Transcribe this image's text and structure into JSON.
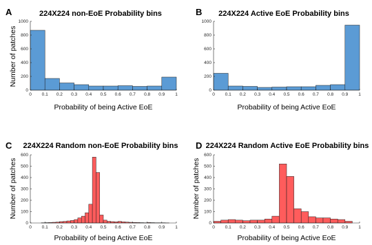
{
  "figure": {
    "panel_letters": [
      "A",
      "B",
      "C",
      "D"
    ]
  },
  "chart_data": [
    {
      "type": "bar",
      "panel": "A",
      "title": "224X224 non-EoE Probability bins",
      "xlabel": "Probability of being Active EoE",
      "ylabel": "Number of patches",
      "bin_edges": [
        0,
        0.1,
        0.2,
        0.3,
        0.4,
        0.5,
        0.6,
        0.7,
        0.8,
        0.9,
        1.0
      ],
      "values": [
        870,
        170,
        105,
        80,
        60,
        60,
        65,
        55,
        60,
        190
      ],
      "xlim": [
        0,
        1
      ],
      "ylim": [
        0,
        1000
      ],
      "xticks": [
        "0",
        "0.1",
        "0.2",
        "0.3",
        "0.4",
        "0.5",
        "0.6",
        "0.7",
        "0.8",
        "0.9",
        "1"
      ],
      "yticks": [
        "0",
        "200",
        "400",
        "600",
        "800",
        "1000"
      ],
      "color": "#5b9bd5"
    },
    {
      "type": "bar",
      "panel": "B",
      "title": "224X224 Active EoE Probability bins",
      "xlabel": "Probability of being Active EoE",
      "ylabel": "",
      "bin_edges": [
        0,
        0.1,
        0.2,
        0.3,
        0.4,
        0.5,
        0.6,
        0.7,
        0.8,
        0.9,
        1.0
      ],
      "values": [
        245,
        60,
        55,
        40,
        45,
        50,
        50,
        70,
        80,
        945
      ],
      "xlim": [
        0,
        1
      ],
      "ylim": [
        0,
        1000
      ],
      "xticks": [
        "0",
        "0.1",
        "0.2",
        "0.3",
        "0.4",
        "0.5",
        "0.6",
        "0.7",
        "0.8",
        "0.9",
        "1"
      ],
      "yticks": [
        "0",
        "200",
        "400",
        "600",
        "800",
        "1000"
      ],
      "color": "#5b9bd5"
    },
    {
      "type": "bar",
      "panel": "C",
      "title": "224X224 Random non-EoE Probability bins",
      "xlabel": "Probability of being Active EoE",
      "ylabel": "Number of patches",
      "bin_edges": [
        0.075,
        0.1,
        0.125,
        0.15,
        0.175,
        0.2,
        0.225,
        0.25,
        0.275,
        0.3,
        0.325,
        0.35,
        0.375,
        0.4,
        0.425,
        0.45,
        0.475,
        0.5,
        0.525,
        0.55,
        0.575,
        0.6,
        0.625,
        0.65,
        0.675,
        0.7,
        0.725,
        0.75,
        0.775,
        0.8,
        0.825,
        0.85,
        0.875,
        0.9,
        0.925,
        0.95
      ],
      "values": [
        2,
        3,
        4,
        6,
        8,
        12,
        14,
        18,
        22,
        30,
        45,
        60,
        90,
        165,
        580,
        445,
        70,
        25,
        15,
        12,
        10,
        14,
        10,
        8,
        6,
        5,
        4,
        3,
        2,
        4,
        3,
        2,
        2,
        2,
        1
      ],
      "xlim": [
        0,
        1
      ],
      "ylim": [
        0,
        600
      ],
      "xticks": [
        "0",
        "0.1",
        "0.2",
        "0.3",
        "0.4",
        "0.5",
        "0.6",
        "0.7",
        "0.8",
        "0.9",
        "1"
      ],
      "yticks": [
        "0",
        "100",
        "200",
        "300",
        "400",
        "500",
        "600"
      ],
      "color": "#ff5c5c"
    },
    {
      "type": "bar",
      "panel": "D",
      "title": "224X224 Random Active EoE Probability bins",
      "xlabel": "Probability of being Active EoE",
      "ylabel": "Number of patches",
      "bin_edges": [
        0,
        0.05,
        0.1,
        0.15,
        0.2,
        0.25,
        0.3,
        0.35,
        0.4,
        0.45,
        0.5,
        0.55,
        0.6,
        0.65,
        0.7,
        0.75,
        0.8,
        0.85,
        0.9,
        0.95
      ],
      "values": [
        15,
        25,
        30,
        25,
        20,
        25,
        25,
        35,
        60,
        520,
        410,
        125,
        100,
        55,
        45,
        45,
        35,
        30,
        15
      ],
      "xlim": [
        0,
        1
      ],
      "ylim": [
        0,
        600
      ],
      "xticks": [
        "0",
        "0.1",
        "0.2",
        "0.3",
        "0.4",
        "0.5",
        "0.6",
        "0.7",
        "0.8",
        "0.9",
        "1"
      ],
      "yticks": [
        "0",
        "100",
        "200",
        "300",
        "400",
        "500",
        "600"
      ],
      "color": "#ff5c5c"
    }
  ]
}
